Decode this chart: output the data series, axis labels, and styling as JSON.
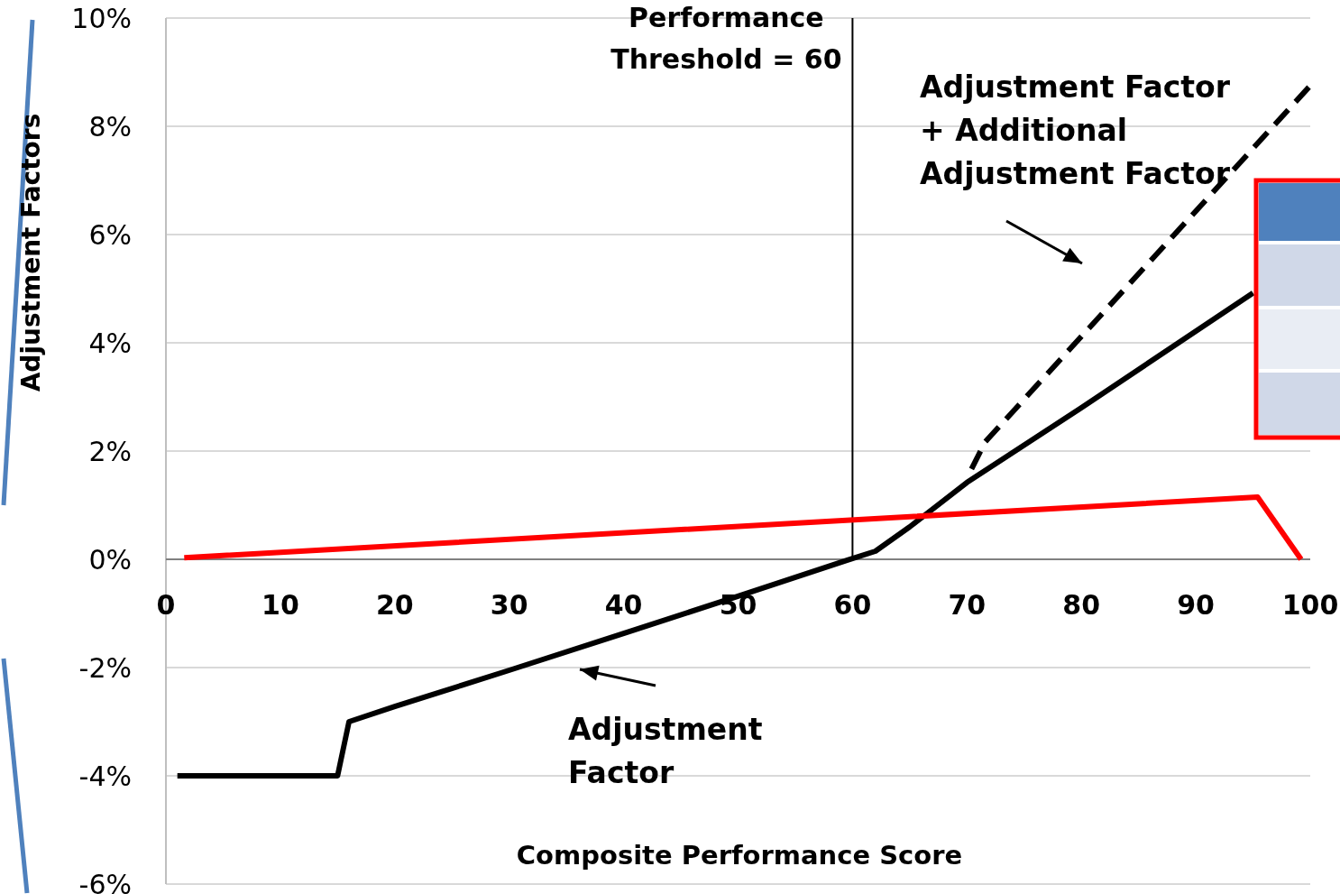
{
  "chart_data": {
    "type": "line",
    "xlabel": "Composite Performance Score",
    "ylabel": "Adjustment Factors",
    "xlim": [
      0,
      100
    ],
    "xticks": [
      0,
      10,
      20,
      30,
      40,
      50,
      60,
      70,
      80,
      90,
      100
    ],
    "ylim": [
      -6,
      10
    ],
    "yticks": [
      {
        "value": -6,
        "label": "-6%"
      },
      {
        "value": -4,
        "label": "-4%"
      },
      {
        "value": -2,
        "label": "-2%"
      },
      {
        "value": 0,
        "label": "0%"
      },
      {
        "value": 2,
        "label": "2%"
      },
      {
        "value": 4,
        "label": "4%"
      },
      {
        "value": 6,
        "label": "6%"
      },
      {
        "value": 8,
        "label": "8%"
      },
      {
        "value": 10,
        "label": "10%"
      }
    ],
    "grid": "y",
    "marker": "none",
    "series": [
      {
        "color": "#000000",
        "line_style": "solid",
        "x": [
          1,
          15,
          16,
          20,
          30,
          40,
          50,
          59.5,
          62,
          65,
          70,
          80,
          95
        ],
        "values": [
          -4,
          -4,
          -3,
          -2.72,
          -2.05,
          -1.37,
          -0.68,
          -0.02,
          0.15,
          0.6,
          1.42,
          2.8,
          4.92
        ]
      },
      {
        "color": "#000000",
        "line_style": "dashed",
        "x": [
          70.4,
          71.6,
          100
        ],
        "values": [
          1.67,
          2.17,
          8.75
        ]
      },
      {
        "color": "#ff0000",
        "line_style": "solid",
        "x": [
          1.6,
          95.4,
          99.2
        ],
        "values": [
          0.03,
          1.15,
          0
        ]
      }
    ],
    "ref_lines": [
      {
        "axis": "x",
        "value": 60,
        "label": "Performance\nThreshold = 60",
        "color": "#000000"
      }
    ],
    "annotations": [
      "Adjustment Factor\n+ Additional\nAdjustment Factor",
      "Adjustment\nFactor"
    ]
  }
}
